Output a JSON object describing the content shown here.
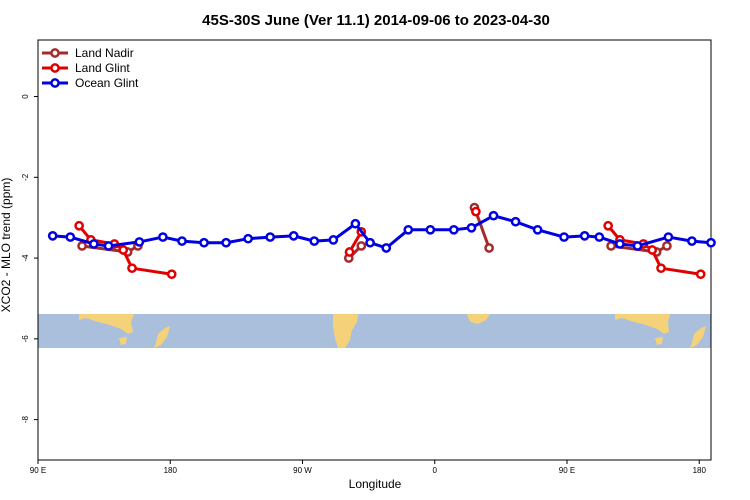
{
  "chart_data": {
    "type": "line",
    "title": "45S-30S June (Ver 11.1)   2014-09-06 to 2023-04-30",
    "xlabel": "Longitude",
    "ylabel": "XCO2 - MLO trend (ppm)",
    "xlim": [
      90,
      450
    ],
    "ylim": [
      -9,
      1.4
    ],
    "x_ticks": [
      {
        "value": 90,
        "label": "90 E"
      },
      {
        "value": 180,
        "label": "180"
      },
      {
        "value": 270,
        "label": "90 W"
      },
      {
        "value": 360,
        "label": "0"
      },
      {
        "value": 450,
        "label": "90 E"
      },
      {
        "value": 540,
        "label": "180"
      }
    ],
    "y_ticks": [
      {
        "value": 0,
        "label": "0"
      },
      {
        "value": -2,
        "label": "-2"
      },
      {
        "value": -4,
        "label": "-4"
      },
      {
        "value": -6,
        "label": "-6"
      },
      {
        "value": -8,
        "label": "-8"
      }
    ],
    "grid": false,
    "legend_position": "top-left",
    "map_band": {
      "lat_range": [
        -45,
        -30
      ],
      "ocean_color": "#a9bfdc",
      "land_color": "#f5d27a"
    },
    "series": [
      {
        "name": "Land Nadir",
        "color": "#a52a2a",
        "segments": [
          {
            "x": [
              120,
              151,
              158
            ],
            "y": [
              -3.7,
              -3.85,
              -3.7
            ]
          },
          {
            "x": [
              301.5,
              310
            ],
            "y": [
              -4.0,
              -3.7
            ]
          },
          {
            "x": [
              387,
              397
            ],
            "y": [
              -2.75,
              -3.75
            ]
          },
          {
            "x": [
              480,
              511,
              518
            ],
            "y": [
              -3.7,
              -3.85,
              -3.7
            ]
          }
        ]
      },
      {
        "name": "Land Glint",
        "color": "#e00000",
        "segments": [
          {
            "x": [
              118,
              126,
              142,
              148,
              154,
              181
            ],
            "y": [
              -3.2,
              -3.55,
              -3.65,
              -3.8,
              -4.25,
              -4.4
            ]
          },
          {
            "x": [
              302,
              310
            ],
            "y": [
              -3.85,
              -3.35
            ]
          },
          {
            "x": [
              388
            ],
            "y": [
              -2.85
            ]
          },
          {
            "x": [
              478,
              486,
              502,
              508,
              514,
              541
            ],
            "y": [
              -3.2,
              -3.55,
              -3.65,
              -3.8,
              -4.25,
              -4.4
            ]
          }
        ]
      },
      {
        "name": "Ocean Glint",
        "color": "#0000e0",
        "segments": [
          {
            "x": [
              100,
              112,
              128,
              138,
              159,
              175,
              188,
              203,
              218,
              233,
              248,
              264,
              278,
              291,
              306,
              316,
              327,
              342,
              357,
              373,
              385,
              400,
              415,
              430,
              448,
              462,
              472,
              486,
              498,
              519,
              535,
              548
            ],
            "y": [
              -3.45,
              -3.48,
              -3.65,
              -3.7,
              -3.6,
              -3.48,
              -3.58,
              -3.62,
              -3.62,
              -3.52,
              -3.48,
              -3.45,
              -3.58,
              -3.55,
              -3.15,
              -3.62,
              -3.75,
              -3.3,
              -3.3,
              -3.3,
              -3.25,
              -2.95,
              -3.1,
              -3.3,
              -3.48,
              -3.45,
              -3.48,
              -3.65,
              -3.7,
              -3.48,
              -3.58,
              -3.62
            ]
          }
        ]
      }
    ]
  }
}
